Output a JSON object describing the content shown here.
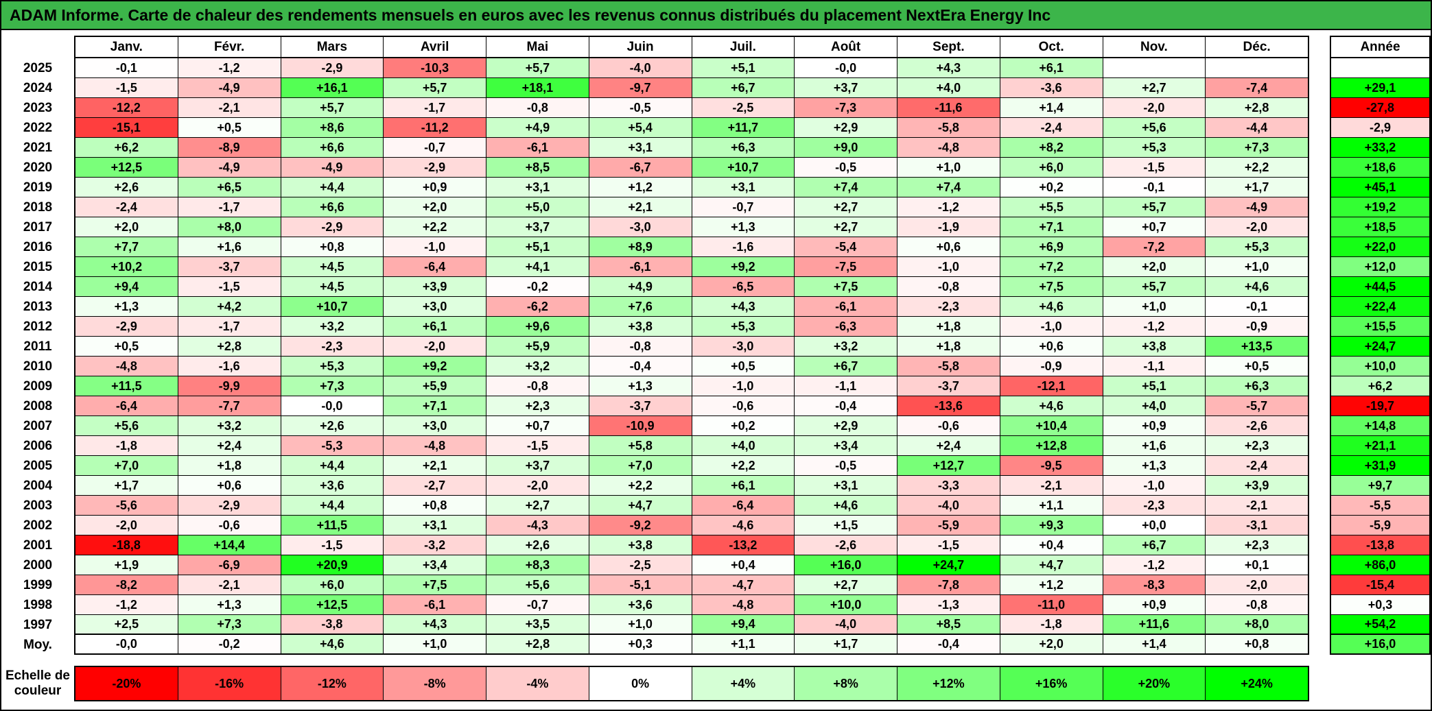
{
  "title_bar": {
    "text": "ADAM Informe. Carte de chaleur des rendements mensuels en euros avec les revenus connus distribués du placement NextEra Energy Inc"
  },
  "colors": {
    "title_bg": "#3cb54a",
    "grid_border": "#000000",
    "negative_max": "#ff0000",
    "zero": "#ffffff",
    "positive_max": "#00ff00"
  },
  "scale": {
    "label": "Echelle de couleur",
    "ticks": [
      "-20%",
      "-16%",
      "-12%",
      "-8%",
      "-4%",
      "0%",
      "+4%",
      "+8%",
      "+12%",
      "+16%",
      "+20%",
      "+24%"
    ]
  },
  "chart_data": {
    "type": "heatmap",
    "title": "Carte de chaleur des rendements mensuels en euros avec les revenus connus distribués du placement NextEra Energy Inc",
    "unit": "percent, French decimal comma",
    "x_labels": [
      "Janv.",
      "Févr.",
      "Mars",
      "Avril",
      "Mai",
      "Juin",
      "Juil.",
      "Août",
      "Sept.",
      "Oct.",
      "Nov.",
      "Déc."
    ],
    "annee_label": "Année",
    "color_scale": {
      "neg_limit": -20,
      "pos_limit": 24,
      "negative_color": "#ff0000",
      "zero_color": "#ffffff",
      "positive_color": "#00ff00"
    },
    "rows": [
      {
        "year": "2025",
        "values": [
          "-0,1",
          "-1,2",
          "-2,9",
          "-10,3",
          "+5,7",
          "-4,0",
          "+5,1",
          "-0,0",
          "+4,3",
          "+6,1",
          "",
          ""
        ],
        "annee": ""
      },
      {
        "year": "2024",
        "values": [
          "-1,5",
          "-4,9",
          "+16,1",
          "+5,7",
          "+18,1",
          "-9,7",
          "+6,7",
          "+3,7",
          "+4,0",
          "-3,6",
          "+2,7",
          "-7,4"
        ],
        "annee": "+29,1"
      },
      {
        "year": "2023",
        "values": [
          "-12,2",
          "-2,1",
          "+5,7",
          "-1,7",
          "-0,8",
          "-0,5",
          "-2,5",
          "-7,3",
          "-11,6",
          "+1,4",
          "-2,0",
          "+2,8"
        ],
        "annee": "-27,8"
      },
      {
        "year": "2022",
        "values": [
          "-15,1",
          "+0,5",
          "+8,6",
          "-11,2",
          "+4,9",
          "+5,4",
          "+11,7",
          "+2,9",
          "-5,8",
          "-2,4",
          "+5,6",
          "-4,4"
        ],
        "annee": "-2,9"
      },
      {
        "year": "2021",
        "values": [
          "+6,2",
          "-8,9",
          "+6,6",
          "-0,7",
          "-6,1",
          "+3,1",
          "+6,3",
          "+9,0",
          "-4,8",
          "+8,2",
          "+5,3",
          "+7,3"
        ],
        "annee": "+33,2"
      },
      {
        "year": "2020",
        "values": [
          "+12,5",
          "-4,9",
          "-4,9",
          "-2,9",
          "+8,5",
          "-6,7",
          "+10,7",
          "-0,5",
          "+1,0",
          "+6,0",
          "-1,5",
          "+2,2"
        ],
        "annee": "+18,6"
      },
      {
        "year": "2019",
        "values": [
          "+2,6",
          "+6,5",
          "+4,4",
          "+0,9",
          "+3,1",
          "+1,2",
          "+3,1",
          "+7,4",
          "+7,4",
          "+0,2",
          "-0,1",
          "+1,7"
        ],
        "annee": "+45,1"
      },
      {
        "year": "2018",
        "values": [
          "-2,4",
          "-1,7",
          "+6,6",
          "+2,0",
          "+5,0",
          "+2,1",
          "-0,7",
          "+2,7",
          "-1,2",
          "+5,5",
          "+5,7",
          "-4,9"
        ],
        "annee": "+19,2"
      },
      {
        "year": "2017",
        "values": [
          "+2,0",
          "+8,0",
          "-2,9",
          "+2,2",
          "+3,7",
          "-3,0",
          "+1,3",
          "+2,7",
          "-1,9",
          "+7,1",
          "+0,7",
          "-2,0"
        ],
        "annee": "+18,5"
      },
      {
        "year": "2016",
        "values": [
          "+7,7",
          "+1,6",
          "+0,8",
          "-1,0",
          "+5,1",
          "+8,9",
          "-1,6",
          "-5,4",
          "+0,6",
          "+6,9",
          "-7,2",
          "+5,3"
        ],
        "annee": "+22,0"
      },
      {
        "year": "2015",
        "values": [
          "+10,2",
          "-3,7",
          "+4,5",
          "-6,4",
          "+4,1",
          "-6,1",
          "+9,2",
          "-7,5",
          "-1,0",
          "+7,2",
          "+2,0",
          "+1,0"
        ],
        "annee": "+12,0"
      },
      {
        "year": "2014",
        "values": [
          "+9,4",
          "-1,5",
          "+4,5",
          "+3,9",
          "-0,2",
          "+4,9",
          "-6,5",
          "+7,5",
          "-0,8",
          "+7,5",
          "+5,7",
          "+4,6"
        ],
        "annee": "+44,5"
      },
      {
        "year": "2013",
        "values": [
          "+1,3",
          "+4,2",
          "+10,7",
          "+3,0",
          "-6,2",
          "+7,6",
          "+4,3",
          "-6,1",
          "-2,3",
          "+4,6",
          "+1,0",
          "-0,1"
        ],
        "annee": "+22,4"
      },
      {
        "year": "2012",
        "values": [
          "-2,9",
          "-1,7",
          "+3,2",
          "+6,1",
          "+9,6",
          "+3,8",
          "+5,3",
          "-6,3",
          "+1,8",
          "-1,0",
          "-1,2",
          "-0,9"
        ],
        "annee": "+15,5"
      },
      {
        "year": "2011",
        "values": [
          "+0,5",
          "+2,8",
          "-2,3",
          "-2,0",
          "+5,9",
          "-0,8",
          "-3,0",
          "+3,2",
          "+1,8",
          "+0,6",
          "+3,8",
          "+13,5"
        ],
        "annee": "+24,7"
      },
      {
        "year": "2010",
        "values": [
          "-4,8",
          "-1,6",
          "+5,3",
          "+9,2",
          "+3,2",
          "-0,4",
          "+0,5",
          "+6,7",
          "-5,8",
          "-0,9",
          "-1,1",
          "+0,5"
        ],
        "annee": "+10,0"
      },
      {
        "year": "2009",
        "values": [
          "+11,5",
          "-9,9",
          "+7,3",
          "+5,9",
          "-0,8",
          "+1,3",
          "-1,0",
          "-1,1",
          "-3,7",
          "-12,1",
          "+5,1",
          "+6,3"
        ],
        "annee": "+6,2"
      },
      {
        "year": "2008",
        "values": [
          "-6,4",
          "-7,7",
          "-0,0",
          "+7,1",
          "+2,3",
          "-3,7",
          "-0,6",
          "-0,4",
          "-13,6",
          "+4,6",
          "+4,0",
          "-5,7"
        ],
        "annee": "-19,7"
      },
      {
        "year": "2007",
        "values": [
          "+5,6",
          "+3,2",
          "+2,6",
          "+3,0",
          "+0,7",
          "-10,9",
          "+0,2",
          "+2,9",
          "-0,6",
          "+10,4",
          "+0,9",
          "-2,6"
        ],
        "annee": "+14,8"
      },
      {
        "year": "2006",
        "values": [
          "-1,8",
          "+2,4",
          "-5,3",
          "-4,8",
          "-1,5",
          "+5,8",
          "+4,0",
          "+3,4",
          "+2,4",
          "+12,8",
          "+1,6",
          "+2,3"
        ],
        "annee": "+21,1"
      },
      {
        "year": "2005",
        "values": [
          "+7,0",
          "+1,8",
          "+4,4",
          "+2,1",
          "+3,7",
          "+7,0",
          "+2,2",
          "-0,5",
          "+12,7",
          "-9,5",
          "+1,3",
          "-2,4"
        ],
        "annee": "+31,9"
      },
      {
        "year": "2004",
        "values": [
          "+1,7",
          "+0,6",
          "+3,6",
          "-2,7",
          "-2,0",
          "+2,2",
          "+6,1",
          "+3,1",
          "-3,3",
          "-2,1",
          "-1,0",
          "+3,9"
        ],
        "annee": "+9,7"
      },
      {
        "year": "2003",
        "values": [
          "-5,6",
          "-2,9",
          "+4,4",
          "+0,8",
          "+2,7",
          "+4,7",
          "-6,4",
          "+4,6",
          "-4,0",
          "+1,1",
          "-2,3",
          "-2,1"
        ],
        "annee": "-5,5"
      },
      {
        "year": "2002",
        "values": [
          "-2,0",
          "-0,6",
          "+11,5",
          "+3,1",
          "-4,3",
          "-9,2",
          "-4,6",
          "+1,5",
          "-5,9",
          "+9,3",
          "+0,0",
          "-3,1"
        ],
        "annee": "-5,9"
      },
      {
        "year": "2001",
        "values": [
          "-18,8",
          "+14,4",
          "-1,5",
          "-3,2",
          "+2,6",
          "+3,8",
          "-13,2",
          "-2,6",
          "-1,5",
          "+0,4",
          "+6,7",
          "+2,3"
        ],
        "annee": "-13,8"
      },
      {
        "year": "2000",
        "values": [
          "+1,9",
          "-6,9",
          "+20,9",
          "+3,4",
          "+8,3",
          "-2,5",
          "+0,4",
          "+16,0",
          "+24,7",
          "+4,7",
          "-1,2",
          "+0,1"
        ],
        "annee": "+86,0"
      },
      {
        "year": "1999",
        "values": [
          "-8,2",
          "-2,1",
          "+6,0",
          "+7,5",
          "+5,6",
          "-5,1",
          "-4,7",
          "+2,7",
          "-7,8",
          "+1,2",
          "-8,3",
          "-2,0"
        ],
        "annee": "-15,4"
      },
      {
        "year": "1998",
        "values": [
          "-1,2",
          "+1,3",
          "+12,5",
          "-6,1",
          "-0,7",
          "+3,6",
          "-4,8",
          "+10,0",
          "-1,3",
          "-11,0",
          "+0,9",
          "-0,8"
        ],
        "annee": "+0,3"
      },
      {
        "year": "1997",
        "values": [
          "+2,5",
          "+7,3",
          "-3,8",
          "+4,3",
          "+3,5",
          "+1,0",
          "+9,4",
          "-4,0",
          "+8,5",
          "-1,8",
          "+11,6",
          "+8,0"
        ],
        "annee": "+54,2"
      },
      {
        "year": "Moy.",
        "values": [
          "-0,0",
          "-0,2",
          "+4,6",
          "+1,0",
          "+2,8",
          "+0,3",
          "+1,1",
          "+1,7",
          "-0,4",
          "+2,0",
          "+1,4",
          "+0,8"
        ],
        "annee": "+16,0"
      }
    ]
  }
}
